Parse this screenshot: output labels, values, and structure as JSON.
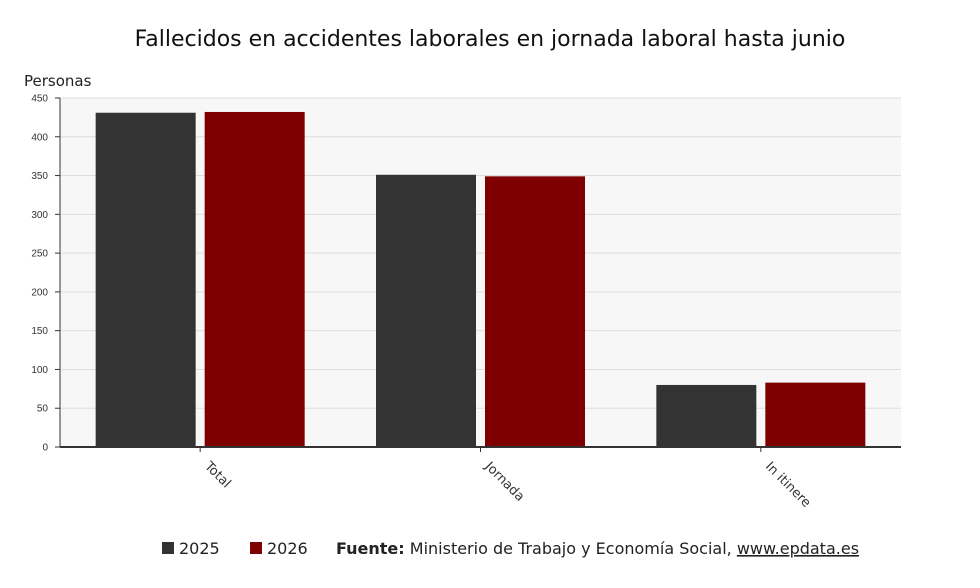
{
  "chart_data": {
    "type": "bar",
    "title": "Fallecidos en accidentes laborales en jornada laboral hasta junio",
    "ylabel": "Personas",
    "xlabel": "",
    "categories": [
      "Total",
      "Jornada",
      "In itinere"
    ],
    "series": [
      {
        "name": "2025",
        "values": [
          431,
          351,
          80
        ],
        "color": "#333333"
      },
      {
        "name": "2026",
        "values": [
          432,
          349,
          83
        ],
        "color": "#7f0000"
      }
    ],
    "ylim": [
      0,
      450
    ],
    "yticks": [
      0,
      50,
      100,
      150,
      200,
      250,
      300,
      350,
      400,
      450
    ],
    "grid": true,
    "legend_position": "bottom-left"
  },
  "source": {
    "label": "Fuente:",
    "text": "Ministerio de Trabajo y Economía Social,",
    "link": "www.epdata.es"
  }
}
